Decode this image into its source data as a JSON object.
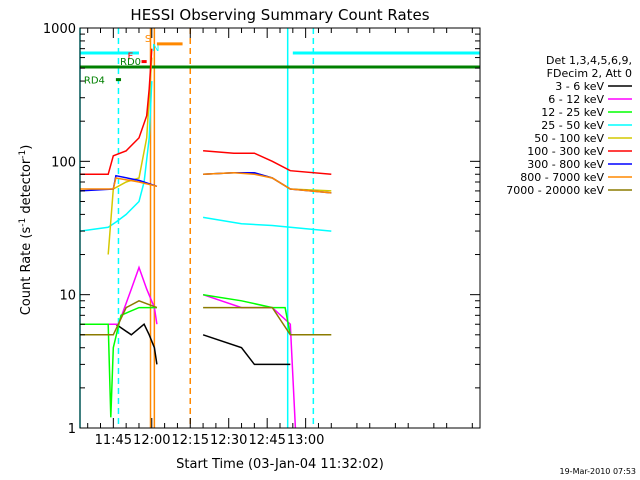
{
  "chart_data": {
    "type": "line",
    "title": "HESSI Observing Summary Count Rates",
    "xlabel": "Start Time (03-Jan-04 11:32:02)",
    "ylabel_main": "Count Rate (s",
    "ylabel_sup1": "-1",
    "ylabel_mid": " detector",
    "ylabel_sup2": "-1",
    "ylabel_end": ")",
    "y_scale": "log",
    "ylim": [
      1,
      1000
    ],
    "xlim_min": [
      32,
      188
    ],
    "x_ticks": [
      {
        "min": 45,
        "label": "11:45"
      },
      {
        "min": 60,
        "label": "12:00"
      },
      {
        "min": 75,
        "label": "12:15"
      },
      {
        "min": 90,
        "label": "12:30"
      },
      {
        "min": 105,
        "label": "12:45"
      },
      {
        "min": 120,
        "label": "13:00"
      }
    ],
    "y_ticks": [
      {
        "v": 1,
        "label": "1"
      },
      {
        "v": 10,
        "label": "10"
      },
      {
        "v": 100,
        "label": "100"
      },
      {
        "v": 1000,
        "label": "1000"
      }
    ],
    "legend_header": [
      "Det 1,3,4,5,6,9,",
      "FDecim 2, Att 0"
    ],
    "legend_placement": "right",
    "series": [
      {
        "name": "3 - 6 keV",
        "color": "#000000",
        "segments": [
          [
            [
              32,
              6
            ],
            [
              46,
              6
            ],
            [
              52,
              5
            ],
            [
              57,
              6
            ],
            [
              59,
              5
            ],
            [
              61,
              4
            ],
            [
              62,
              3
            ]
          ],
          [
            [
              80,
              5
            ],
            [
              95,
              4
            ],
            [
              100,
              3
            ],
            [
              105,
              3
            ],
            [
              114,
              3
            ]
          ]
        ]
      },
      {
        "name": "6 - 12 keV",
        "color": "#ff00ff",
        "segments": [
          [
            [
              32,
              6
            ],
            [
              47,
              6
            ],
            [
              52,
              11
            ],
            [
              55,
              16
            ],
            [
              58,
              11
            ],
            [
              61,
              8
            ],
            [
              62,
              6
            ]
          ],
          [
            [
              80,
              10
            ],
            [
              95,
              8
            ],
            [
              107,
              8
            ],
            [
              114,
              6
            ],
            [
              116,
              1
            ]
          ]
        ]
      },
      {
        "name": "12 - 25 keV",
        "color": "#00ff00",
        "segments": [
          [
            [
              32,
              6
            ],
            [
              43,
              6
            ],
            [
              44,
              1.2
            ],
            [
              45,
              4
            ],
            [
              48,
              7
            ],
            [
              55,
              8
            ],
            [
              62,
              8
            ]
          ],
          [
            [
              80,
              10
            ],
            [
              95,
              9
            ],
            [
              107,
              8
            ],
            [
              112,
              8
            ],
            [
              114,
              5
            ]
          ]
        ]
      },
      {
        "name": "25 - 50 keV",
        "color": "#00ffff",
        "segments": [
          [
            [
              32,
              30
            ],
            [
              43,
              32
            ],
            [
              46,
              35
            ],
            [
              50,
              40
            ],
            [
              55,
              50
            ],
            [
              57,
              70
            ],
            [
              59,
              150
            ],
            [
              60,
              400
            ]
          ],
          [
            [
              80,
              38
            ],
            [
              95,
              34
            ],
            [
              107,
              33
            ],
            [
              114,
              32
            ],
            [
              130,
              30
            ]
          ]
        ]
      },
      {
        "name": "50 - 100 keV",
        "color": "#d4c800",
        "segments": [
          [
            [
              43,
              20
            ],
            [
              45,
              62
            ],
            [
              50,
              70
            ],
            [
              55,
              75
            ],
            [
              58,
              150
            ],
            [
              59,
              300
            ],
            [
              60,
              600
            ]
          ],
          [
            [
              80,
              80
            ],
            [
              92,
              82
            ],
            [
              100,
              82
            ],
            [
              107,
              75
            ],
            [
              114,
              62
            ],
            [
              130,
              60
            ]
          ]
        ]
      },
      {
        "name": "100 - 300 keV",
        "color": "#ff0000",
        "segments": [
          [
            [
              32,
              80
            ],
            [
              43,
              80
            ],
            [
              45,
              110
            ],
            [
              50,
              120
            ],
            [
              55,
              150
            ],
            [
              58,
              220
            ],
            [
              59,
              350
            ],
            [
              60,
              700
            ]
          ],
          [
            [
              80,
              120
            ],
            [
              92,
              115
            ],
            [
              100,
              115
            ],
            [
              107,
              100
            ],
            [
              114,
              85
            ],
            [
              130,
              80
            ]
          ]
        ]
      },
      {
        "name": "300 - 800 keV",
        "color": "#0000ff",
        "segments": [
          [
            [
              32,
              60
            ],
            [
              45,
              62
            ],
            [
              46,
              78
            ],
            [
              55,
              72
            ],
            [
              62,
              65
            ]
          ],
          [
            [
              80,
              80
            ],
            [
              92,
              82
            ],
            [
              100,
              82
            ],
            [
              107,
              75
            ],
            [
              114,
              62
            ],
            [
              130,
              58
            ]
          ]
        ]
      },
      {
        "name": "800 - 7000 keV",
        "color": "#ff8800",
        "segments": [
          [
            [
              32,
              62
            ],
            [
              45,
              62
            ],
            [
              46,
              75
            ],
            [
              55,
              70
            ],
            [
              62,
              65
            ]
          ],
          [
            [
              80,
              80
            ],
            [
              92,
              82
            ],
            [
              100,
              80
            ],
            [
              107,
              75
            ],
            [
              114,
              62
            ],
            [
              130,
              58
            ]
          ]
        ]
      },
      {
        "name": "7000 - 20000 keV",
        "color": "#8b7b00",
        "segments": [
          [
            [
              32,
              5
            ],
            [
              45,
              5
            ],
            [
              50,
              8
            ],
            [
              55,
              9
            ],
            [
              62,
              8
            ]
          ],
          [
            [
              80,
              8
            ],
            [
              95,
              8
            ],
            [
              107,
              8
            ],
            [
              114,
              5
            ],
            [
              130,
              5
            ]
          ]
        ]
      }
    ],
    "flag_bars": [
      {
        "label": "N",
        "color": "#00ffff",
        "y": 650,
        "spans": [
          [
            32,
            55
          ],
          [
            115,
            188
          ]
        ]
      },
      {
        "label": "F",
        "color": "#ff0000",
        "y": 560,
        "spans": [
          [
            56,
            58
          ]
        ]
      },
      {
        "label": "S",
        "color": "#ff8800",
        "y": 760,
        "spans": [
          [
            62,
            72
          ]
        ]
      },
      {
        "label": "RD0",
        "color": "#008000",
        "y": 510,
        "spans": [
          [
            32,
            188
          ]
        ]
      },
      {
        "label": "RD4",
        "color": "#008000",
        "y": 410,
        "spans": [
          [
            46,
            48
          ]
        ]
      }
    ],
    "vertical_lines": [
      {
        "min": 32,
        "color": "#00ffff",
        "style": "solid"
      },
      {
        "min": 47,
        "color": "#00ffff",
        "style": "dashed"
      },
      {
        "min": 59.5,
        "color": "#ff8800",
        "style": "solid"
      },
      {
        "min": 61,
        "color": "#ff8800",
        "style": "solid"
      },
      {
        "min": 75,
        "color": "#ff8800",
        "style": "dashed"
      },
      {
        "min": 113,
        "color": "#00ffff",
        "style": "solid"
      },
      {
        "min": 123,
        "color": "#00ffff",
        "style": "dashed"
      }
    ],
    "timestamp": "19-Mar-2010 07:53"
  }
}
